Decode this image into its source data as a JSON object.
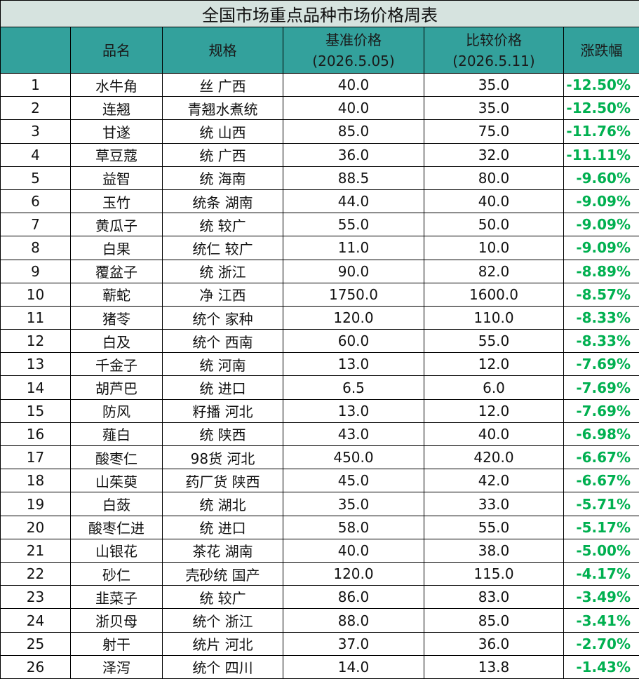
{
  "title": "全国市场重点品种市场价格周表",
  "table": {
    "headers": [
      [
        "品名"
      ],
      [
        "规格"
      ],
      [
        "基准价格",
        "(2026.5.05)"
      ],
      [
        "比较价格",
        "(2026.5.11)"
      ],
      [
        "涨跌幅"
      ]
    ],
    "rows": [
      [
        1,
        "水牛角",
        "丝 广西",
        "40.0",
        "35.0",
        "-12.50%"
      ],
      [
        2,
        "连翘",
        "青翘水煮统",
        "40.0",
        "35.0",
        "-12.50%"
      ],
      [
        3,
        "甘遂",
        "统 山西",
        "85.0",
        "75.0",
        "-11.76%"
      ],
      [
        4,
        "草豆蔻",
        "统 广西",
        "36.0",
        "32.0",
        "-11.11%"
      ],
      [
        5,
        "益智",
        "统 海南",
        "88.5",
        "80.0",
        "-9.60%"
      ],
      [
        6,
        "玉竹",
        "统条 湖南",
        "44.0",
        "40.0",
        "-9.09%"
      ],
      [
        7,
        "黄瓜子",
        "统 较广",
        "55.0",
        "50.0",
        "-9.09%"
      ],
      [
        8,
        "白果",
        "统仁 较广",
        "11.0",
        "10.0",
        "-9.09%"
      ],
      [
        9,
        "覆盆子",
        "统 浙江",
        "90.0",
        "82.0",
        "-8.89%"
      ],
      [
        10,
        "蕲蛇",
        "净 江西",
        "1750.0",
        "1600.0",
        "-8.57%"
      ],
      [
        11,
        "猪苓",
        "统个 家种",
        "120.0",
        "110.0",
        "-8.33%"
      ],
      [
        12,
        "白及",
        "统个 西南",
        "60.0",
        "55.0",
        "-8.33%"
      ],
      [
        13,
        "千金子",
        "统 河南",
        "13.0",
        "12.0",
        "-7.69%"
      ],
      [
        14,
        "胡芦巴",
        "统 进口",
        "6.5",
        "6.0",
        "-7.69%"
      ],
      [
        15,
        "防风",
        "籽播 河北",
        "13.0",
        "12.0",
        "-7.69%"
      ],
      [
        16,
        "薤白",
        "统 陕西",
        "43.0",
        "40.0",
        "-6.98%"
      ],
      [
        17,
        "酸枣仁",
        "98货 河北",
        "450.0",
        "420.0",
        "-6.67%"
      ],
      [
        18,
        "山茱萸",
        "药厂货 陕西",
        "45.0",
        "42.0",
        "-6.67%"
      ],
      [
        19,
        "白蔹",
        "统 湖北",
        "35.0",
        "33.0",
        "-5.71%"
      ],
      [
        20,
        "酸枣仁进",
        "统 进口",
        "58.0",
        "55.0",
        "-5.17%"
      ],
      [
        21,
        "山银花",
        "茶花 湖南",
        "40.0",
        "38.0",
        "-5.00%"
      ],
      [
        22,
        "砂仁",
        "壳砂统 国产",
        "120.0",
        "115.0",
        "-4.17%"
      ],
      [
        23,
        "韭菜子",
        "统 较广",
        "86.0",
        "83.0",
        "-3.49%"
      ],
      [
        24,
        "浙贝母",
        "统个 浙江",
        "88.0",
        "85.0",
        "-3.41%"
      ],
      [
        25,
        "射干",
        "统片 河北",
        "37.0",
        "36.0",
        "-2.70%"
      ],
      [
        26,
        "泽泻",
        "统个 四川",
        "14.0",
        "13.8",
        "-1.43%"
      ]
    ]
  }
}
